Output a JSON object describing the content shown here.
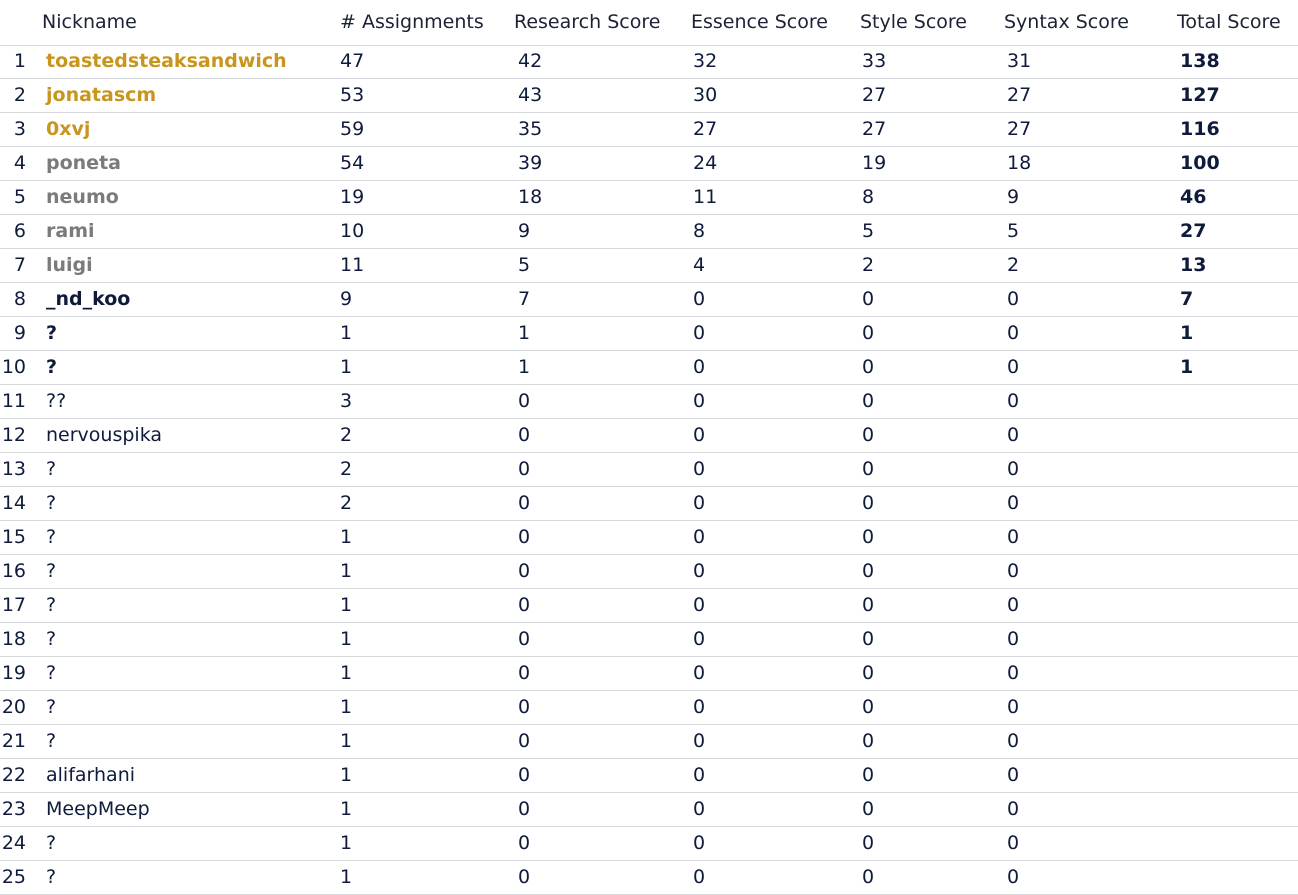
{
  "columns": {
    "nickname": "Nickname",
    "assignments": "# Assignments",
    "research": "Research Score",
    "essence": "Essence Score",
    "style": "Style Score",
    "syntax": "Syntax Score",
    "total": "Total Score"
  },
  "colors": {
    "gold": "#c8961e",
    "grey": "#7b7b7b",
    "navy": "#0f1b3a",
    "divider": "#d6d9de"
  },
  "rows": [
    {
      "rank": "1",
      "nickname": "toastedsteaksandwich",
      "tier": "gold",
      "assignments": "47",
      "research": "42",
      "essence": "32",
      "style": "33",
      "syntax": "31",
      "total": "138"
    },
    {
      "rank": "2",
      "nickname": "jonatascm",
      "tier": "gold",
      "assignments": "53",
      "research": "43",
      "essence": "30",
      "style": "27",
      "syntax": "27",
      "total": "127"
    },
    {
      "rank": "3",
      "nickname": "0xvj",
      "tier": "gold",
      "assignments": "59",
      "research": "35",
      "essence": "27",
      "style": "27",
      "syntax": "27",
      "total": "116"
    },
    {
      "rank": "4",
      "nickname": "poneta",
      "tier": "grey",
      "assignments": "54",
      "research": "39",
      "essence": "24",
      "style": "19",
      "syntax": "18",
      "total": "100"
    },
    {
      "rank": "5",
      "nickname": "neumo",
      "tier": "grey",
      "assignments": "19",
      "research": "18",
      "essence": "11",
      "style": "8",
      "syntax": "9",
      "total": "46"
    },
    {
      "rank": "6",
      "nickname": "rami",
      "tier": "grey",
      "assignments": "10",
      "research": "9",
      "essence": "8",
      "style": "5",
      "syntax": "5",
      "total": "27"
    },
    {
      "rank": "7",
      "nickname": "luigi",
      "tier": "grey",
      "assignments": "11",
      "research": "5",
      "essence": "4",
      "style": "2",
      "syntax": "2",
      "total": "13"
    },
    {
      "rank": "8",
      "nickname": "_nd_koo",
      "tier": "bold",
      "assignments": "9",
      "research": "7",
      "essence": "0",
      "style": "0",
      "syntax": "0",
      "total": "7"
    },
    {
      "rank": "9",
      "nickname": "?",
      "tier": "bold",
      "assignments": "1",
      "research": "1",
      "essence": "0",
      "style": "0",
      "syntax": "0",
      "total": "1"
    },
    {
      "rank": "10",
      "nickname": "?",
      "tier": "bold",
      "assignments": "1",
      "research": "1",
      "essence": "0",
      "style": "0",
      "syntax": "0",
      "total": "1"
    },
    {
      "rank": "11",
      "nickname": "??",
      "tier": "plain",
      "assignments": "3",
      "research": "0",
      "essence": "0",
      "style": "0",
      "syntax": "0",
      "total": ""
    },
    {
      "rank": "12",
      "nickname": "nervouspika",
      "tier": "plain",
      "assignments": "2",
      "research": "0",
      "essence": "0",
      "style": "0",
      "syntax": "0",
      "total": ""
    },
    {
      "rank": "13",
      "nickname": "?",
      "tier": "plain",
      "assignments": "2",
      "research": "0",
      "essence": "0",
      "style": "0",
      "syntax": "0",
      "total": ""
    },
    {
      "rank": "14",
      "nickname": "?",
      "tier": "plain",
      "assignments": "2",
      "research": "0",
      "essence": "0",
      "style": "0",
      "syntax": "0",
      "total": ""
    },
    {
      "rank": "15",
      "nickname": "?",
      "tier": "plain",
      "assignments": "1",
      "research": "0",
      "essence": "0",
      "style": "0",
      "syntax": "0",
      "total": ""
    },
    {
      "rank": "16",
      "nickname": "?",
      "tier": "plain",
      "assignments": "1",
      "research": "0",
      "essence": "0",
      "style": "0",
      "syntax": "0",
      "total": ""
    },
    {
      "rank": "17",
      "nickname": "?",
      "tier": "plain",
      "assignments": "1",
      "research": "0",
      "essence": "0",
      "style": "0",
      "syntax": "0",
      "total": ""
    },
    {
      "rank": "18",
      "nickname": "?",
      "tier": "plain",
      "assignments": "1",
      "research": "0",
      "essence": "0",
      "style": "0",
      "syntax": "0",
      "total": ""
    },
    {
      "rank": "19",
      "nickname": "?",
      "tier": "plain",
      "assignments": "1",
      "research": "0",
      "essence": "0",
      "style": "0",
      "syntax": "0",
      "total": ""
    },
    {
      "rank": "20",
      "nickname": "?",
      "tier": "plain",
      "assignments": "1",
      "research": "0",
      "essence": "0",
      "style": "0",
      "syntax": "0",
      "total": ""
    },
    {
      "rank": "21",
      "nickname": "?",
      "tier": "plain",
      "assignments": "1",
      "research": "0",
      "essence": "0",
      "style": "0",
      "syntax": "0",
      "total": ""
    },
    {
      "rank": "22",
      "nickname": "alifarhani",
      "tier": "plain",
      "assignments": "1",
      "research": "0",
      "essence": "0",
      "style": "0",
      "syntax": "0",
      "total": ""
    },
    {
      "rank": "23",
      "nickname": "MeepMeep",
      "tier": "plain",
      "assignments": "1",
      "research": "0",
      "essence": "0",
      "style": "0",
      "syntax": "0",
      "total": ""
    },
    {
      "rank": "24",
      "nickname": "?",
      "tier": "plain",
      "assignments": "1",
      "research": "0",
      "essence": "0",
      "style": "0",
      "syntax": "0",
      "total": ""
    },
    {
      "rank": "25",
      "nickname": "?",
      "tier": "plain",
      "assignments": "1",
      "research": "0",
      "essence": "0",
      "style": "0",
      "syntax": "0",
      "total": ""
    }
  ]
}
